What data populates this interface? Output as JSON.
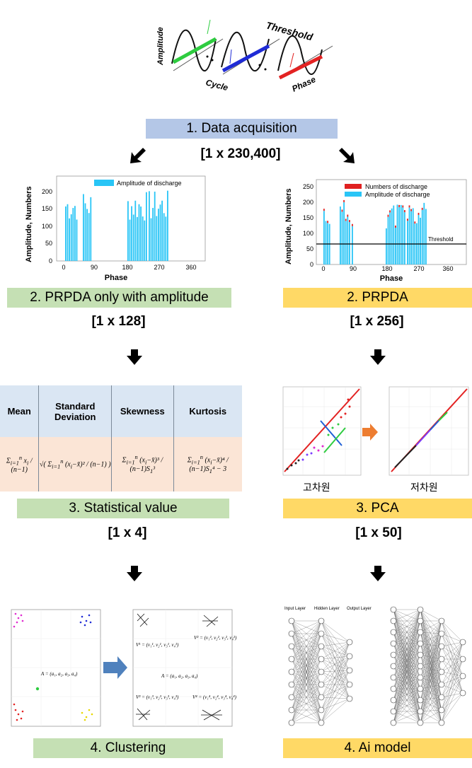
{
  "top": {
    "threshold": "Threshold",
    "amplitude": "Amplitude",
    "cycle": "Cycle",
    "phase": "Phase"
  },
  "step1": {
    "label": "1. Data acquisition",
    "dims": "[1 x 230,400]"
  },
  "left": {
    "chart": {
      "legend": "Amplitude of discharge",
      "ylabel": "Amplitude, Numbers",
      "xlabel": "Phase",
      "yticks": [
        "0",
        "50",
        "100",
        "150",
        "200"
      ],
      "xticks": [
        "0",
        "90",
        "180",
        "270",
        "360"
      ]
    },
    "step2": {
      "label": "2. PRPDA only with amplitude",
      "dims": "[1 x 128]"
    },
    "stats": {
      "headers": [
        "Mean",
        "Standard Deviation",
        "Skewness",
        "Kurtosis"
      ]
    },
    "step3": {
      "label": "3. Statistical value",
      "dims": "[1 x 4]"
    },
    "cluster": {
      "a_label": "A = (a₁, a₂, a₃, a₄)",
      "v1": "V¹ = (v₁¹, v₂¹, v₃¹, v₄¹)",
      "v2": "V² = (v₁², v₂², v₃², v₄²)",
      "v3": "V³ = (v₁³, v₂³, v₃³, v₄³)",
      "v4": "V⁴ = (v₁⁴, v₂⁴, v₃⁴, v₄⁴)"
    },
    "step4": {
      "label": "4. Clustering"
    }
  },
  "right": {
    "chart": {
      "legend1": "Numbers of discharge",
      "legend2": "Amplitude of discharge",
      "ylabel": "Amplitude, Numbers",
      "xlabel": "Phase",
      "threshold": "Threshold",
      "yticks": [
        "0",
        "50",
        "100",
        "150",
        "200",
        "250"
      ],
      "xticks": [
        "0",
        "90",
        "180",
        "270",
        "360"
      ]
    },
    "step2": {
      "label": "2. PRPDA",
      "dims": "[1 x 256]"
    },
    "pca": {
      "high": "고차원",
      "low": "저차원"
    },
    "step3": {
      "label": "3. PCA",
      "dims": "[1 x 50]"
    },
    "nn": {
      "input": "Input Layer",
      "hidden": "Hidden Layer",
      "output": "Output Layer"
    },
    "step4": {
      "label": "4. Ai model"
    }
  },
  "colors": {
    "blue_box": "#b4c7e7",
    "green_box": "#c5e0b4",
    "yellow_box": "#ffd966",
    "bars": "#29c5f6",
    "red_bars": "#e02020"
  }
}
